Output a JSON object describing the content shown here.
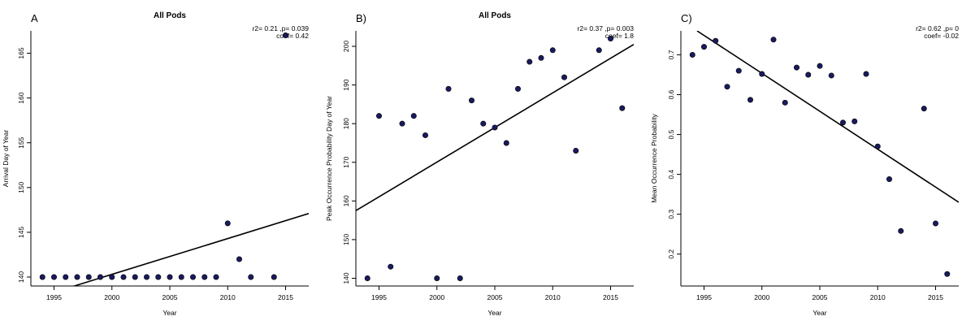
{
  "chart_data": [
    {
      "type": "scatter",
      "panel_label": "A",
      "title": "All Pods",
      "xlabel": "Year",
      "ylabel": "Arrival Day of Year",
      "stat_line1": "r2= 0.21 ,p= 0.039",
      "stat_line2": "coef= 0.42",
      "xlim": [
        1993,
        2017
      ],
      "ylim": [
        139,
        167.5
      ],
      "xticks": [
        1995,
        2000,
        2005,
        2010,
        2015
      ],
      "yticks": [
        140,
        145,
        150,
        155,
        160,
        165
      ],
      "fit_line": {
        "x": [
          1993,
          2017
        ],
        "y": [
          137.5,
          147.1
        ]
      },
      "x": [
        1994,
        1995,
        1996,
        1997,
        1998,
        1999,
        2000,
        2001,
        2002,
        2003,
        2004,
        2005,
        2006,
        2007,
        2008,
        2009,
        2010,
        2011,
        2012,
        2014,
        2015
      ],
      "y": [
        140,
        140,
        140,
        140,
        140,
        140,
        140,
        140,
        140,
        140,
        140,
        140,
        140,
        140,
        140,
        140,
        146,
        142,
        140,
        140,
        167
      ],
      "point_color": "#1a1a5e"
    },
    {
      "type": "scatter",
      "panel_label": "B)",
      "title": "All Pods",
      "xlabel": "Year",
      "ylabel": "Peak Occurrence Probability Day of Year",
      "stat_line1": "r2= 0.37 ,p= 0.003",
      "stat_line2": "coef= 1.8",
      "xlim": [
        1993,
        2017
      ],
      "ylim": [
        138,
        204
      ],
      "xticks": [
        1995,
        2000,
        2005,
        2010,
        2015
      ],
      "yticks": [
        140,
        150,
        160,
        170,
        180,
        190,
        200
      ],
      "fit_line": {
        "x": [
          1993,
          2017
        ],
        "y": [
          157.5,
          200.5
        ]
      },
      "x": [
        1994,
        1995,
        1996,
        1997,
        1998,
        1999,
        2000,
        2001,
        2002,
        2003,
        2004,
        2005,
        2006,
        2007,
        2008,
        2009,
        2010,
        2011,
        2012,
        2014,
        2015,
        2016
      ],
      "y": [
        140,
        182,
        143,
        180,
        182,
        177,
        140,
        189,
        140,
        186,
        180,
        179,
        175,
        189,
        196,
        197,
        199,
        192,
        173,
        199,
        202,
        184
      ],
      "point_color": "#1a1a5e"
    },
    {
      "type": "scatter",
      "panel_label": "C)",
      "title": "",
      "xlabel": "Year",
      "ylabel": "Mean Occurrence Probability",
      "stat_line1": "r2= 0.62 ,p= 0",
      "stat_line2": "coef= -0.02",
      "xlim": [
        1993,
        2017
      ],
      "ylim": [
        0.12,
        0.76
      ],
      "xticks": [
        1995,
        2000,
        2005,
        2010,
        2015
      ],
      "yticks": [
        0.2,
        0.3,
        0.4,
        0.5,
        0.6,
        0.7
      ],
      "fit_line": {
        "x": [
          1994.4,
          2017
        ],
        "y": [
          0.76,
          0.33
        ]
      },
      "x": [
        1994,
        1995,
        1996,
        1997,
        1998,
        1999,
        2000,
        2001,
        2002,
        2003,
        2004,
        2005,
        2006,
        2007,
        2008,
        2009,
        2010,
        2011,
        2012,
        2014,
        2015,
        2016
      ],
      "y": [
        0.7,
        0.72,
        0.735,
        0.62,
        0.66,
        0.587,
        0.652,
        0.738,
        0.58,
        0.668,
        0.65,
        0.672,
        0.648,
        0.53,
        0.533,
        0.652,
        0.47,
        0.388,
        0.258,
        0.565,
        0.277,
        0.15
      ],
      "point_color": "#1a1a5e"
    }
  ]
}
